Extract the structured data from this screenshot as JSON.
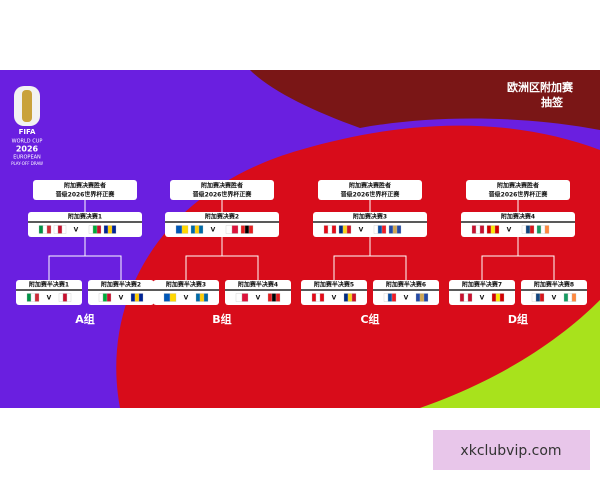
{
  "header": {
    "title": "欧洲区附加赛",
    "subtitle": "抽签"
  },
  "logo": {
    "brand": "FIFA",
    "event": "WORLD CUP",
    "year": "2026",
    "region": "EUROPEAN",
    "stage": "PLAY-OFF DRAW"
  },
  "versus": "V",
  "groups": [
    {
      "label": "A组",
      "winner": [
        "附加赛决赛胜者",
        "晋级2026世界杯正赛"
      ],
      "final": "附加赛决赛1",
      "semis": [
        "附加赛半决赛1",
        "附加赛半决赛2"
      ]
    },
    {
      "label": "B组",
      "winner": [
        "附加赛决赛胜者",
        "晋级2026世界杯正赛"
      ],
      "final": "附加赛决赛2",
      "semis": [
        "附加赛半决赛3",
        "附加赛半决赛4"
      ]
    },
    {
      "label": "C组",
      "winner": [
        "附加赛决赛胜者",
        "晋级2026世界杯正赛"
      ],
      "final": "附加赛决赛3",
      "semis": [
        "附加赛半决赛5",
        "附加赛半决赛6"
      ]
    },
    {
      "label": "D组",
      "winner": [
        "附加赛决赛胜者",
        "晋级2026世界杯正赛"
      ],
      "final": "附加赛决赛4",
      "semis": [
        "附加赛半决赛7",
        "附加赛半决赛8"
      ]
    }
  ],
  "watermark": "xkclubvip.com"
}
